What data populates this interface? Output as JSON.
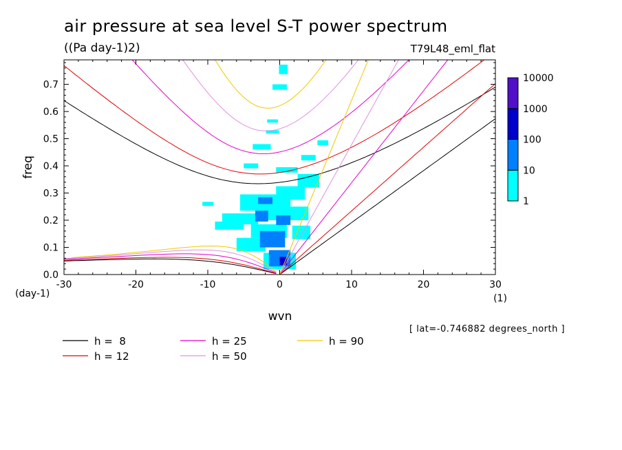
{
  "chart_data": {
    "type": "heatmap",
    "title": "air pressure at sea level S-T power spectrum",
    "subtitle": "((Pa day-1)2)",
    "experiment": "T79L48_eml_flat",
    "xlabel": "wvn",
    "ylabel": "freq",
    "x_unit": "(1)",
    "y_unit": "(day-1)",
    "xlim": [
      -30,
      30
    ],
    "ylim": [
      0,
      0.79
    ],
    "x_ticks": [
      "-30",
      "-20",
      "-10",
      "0",
      "10",
      "20",
      "30"
    ],
    "y_ticks": [
      "0.0",
      "0.1",
      "0.2",
      "0.3",
      "0.4",
      "0.5",
      "0.6",
      "0.7"
    ],
    "x_tick_values": [
      -30,
      -20,
      -10,
      0,
      10,
      20,
      30
    ],
    "y_tick_values": [
      0,
      0.1,
      0.2,
      0.3,
      0.4,
      0.5,
      0.6,
      0.7
    ],
    "info": "[ lat=-0.746882 degrees_north ]",
    "colorbar": {
      "levels": [
        "1",
        "10",
        "100",
        "1000",
        "10000"
      ],
      "colors": [
        "#00ffff",
        "#0080ff",
        "#0000cd",
        "#5010c8"
      ]
    },
    "dispersion_curves": [
      {
        "label": "h =  8",
        "h": 8,
        "color": "#000000"
      },
      {
        "label": "h = 12",
        "h": 12,
        "color": "#e00000"
      },
      {
        "label": "h = 25",
        "h": 25,
        "color": "#e000c8"
      },
      {
        "label": "h = 50",
        "h": 50,
        "color": "#e090e0"
      },
      {
        "label": "h = 90",
        "h": 90,
        "color": "#f0c800"
      }
    ],
    "spectrum_cells": [
      {
        "k": 0.5,
        "f": 0.755,
        "w": 1.2,
        "h": 0.035,
        "level": 0
      },
      {
        "k": 0,
        "f": 0.69,
        "w": 2,
        "h": 0.02,
        "level": 0
      },
      {
        "k": -1,
        "f": 0.565,
        "w": 1.5,
        "h": 0.012,
        "level": 0
      },
      {
        "k": -1,
        "f": 0.525,
        "w": 1.8,
        "h": 0.012,
        "level": 0
      },
      {
        "k": 6,
        "f": 0.485,
        "w": 1.5,
        "h": 0.018,
        "level": 0
      },
      {
        "k": -2.5,
        "f": 0.47,
        "w": 2.5,
        "h": 0.02,
        "level": 0
      },
      {
        "k": 4,
        "f": 0.43,
        "w": 2,
        "h": 0.02,
        "level": 0
      },
      {
        "k": -4,
        "f": 0.4,
        "w": 2,
        "h": 0.018,
        "level": 0
      },
      {
        "k": 1,
        "f": 0.385,
        "w": 3,
        "h": 0.02,
        "level": 0
      },
      {
        "k": 4,
        "f": 0.345,
        "w": 3,
        "h": 0.05,
        "level": 0
      },
      {
        "k": 1.5,
        "f": 0.3,
        "w": 4,
        "h": 0.05,
        "level": 0
      },
      {
        "k": -2,
        "f": 0.265,
        "w": 7,
        "h": 0.06,
        "level": 0
      },
      {
        "k": -10,
        "f": 0.26,
        "w": 1.5,
        "h": 0.015,
        "level": 0
      },
      {
        "k": 1,
        "f": 0.225,
        "w": 6,
        "h": 0.05,
        "level": 0
      },
      {
        "k": -5.5,
        "f": 0.205,
        "w": 5,
        "h": 0.04,
        "level": 0
      },
      {
        "k": -7,
        "f": 0.18,
        "w": 4,
        "h": 0.03,
        "level": 0
      },
      {
        "k": -1.5,
        "f": 0.16,
        "w": 5,
        "h": 0.05,
        "level": 0
      },
      {
        "k": 3,
        "f": 0.155,
        "w": 2.5,
        "h": 0.05,
        "level": 0
      },
      {
        "k": -4,
        "f": 0.11,
        "w": 4,
        "h": 0.05,
        "level": 0
      },
      {
        "k": 0,
        "f": 0.05,
        "w": 4.5,
        "h": 0.06,
        "level": 0
      },
      {
        "k": -2,
        "f": 0.272,
        "w": 2,
        "h": 0.025,
        "level": 1
      },
      {
        "k": -2.5,
        "f": 0.215,
        "w": 1.8,
        "h": 0.04,
        "level": 1
      },
      {
        "k": 0.5,
        "f": 0.2,
        "w": 2,
        "h": 0.035,
        "level": 1
      },
      {
        "k": -1,
        "f": 0.13,
        "w": 3.5,
        "h": 0.06,
        "level": 1
      },
      {
        "k": 0,
        "f": 0.06,
        "w": 3,
        "h": 0.06,
        "level": 1
      },
      {
        "k": 0.5,
        "f": 0.05,
        "w": 1,
        "h": 0.03,
        "level": 2
      }
    ]
  }
}
